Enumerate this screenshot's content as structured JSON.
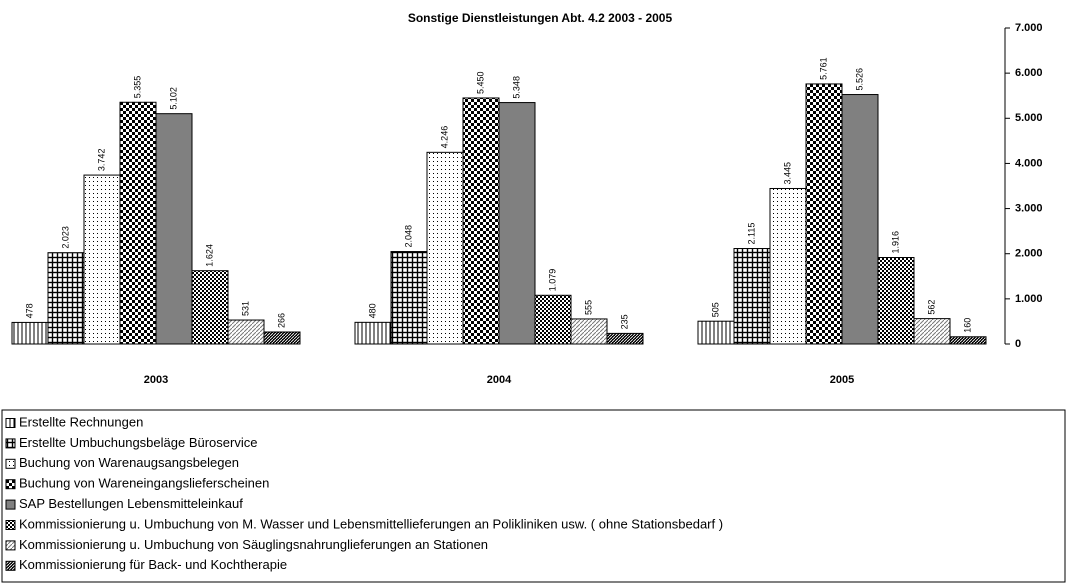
{
  "chart_data": {
    "type": "bar",
    "title": "Sonstige Dienstleistungen  Abt. 4.2     2003 - 2005",
    "categories": [
      "2003",
      "2004",
      "2005"
    ],
    "ylim": [
      0,
      7000
    ],
    "yticks": [
      {
        "value": 0,
        "label": "0"
      },
      {
        "value": 1000,
        "label": "1.000"
      },
      {
        "value": 2000,
        "label": "2.000"
      },
      {
        "value": 3000,
        "label": "3.000"
      },
      {
        "value": 4000,
        "label": "4.000"
      },
      {
        "value": 5000,
        "label": "5.000"
      },
      {
        "value": 6000,
        "label": "6.000"
      },
      {
        "value": 7000,
        "label": "7.000"
      }
    ],
    "series": [
      {
        "name": "Erstellte Rechnungen",
        "color": "#000000",
        "values": [
          478,
          480,
          505
        ],
        "value_labels": [
          "478",
          "480",
          "505"
        ]
      },
      {
        "name": "Erstellte Umbuchungsbeläge Büroservice",
        "color": "#000000",
        "values": [
          2023,
          2048,
          2115
        ],
        "value_labels": [
          "2.023",
          "2.048",
          "2.115"
        ]
      },
      {
        "name": "Buchung von Warenaugsangsbelegen",
        "color": "#000000",
        "values": [
          3742,
          4246,
          3445
        ],
        "value_labels": [
          "3.742",
          "4.246",
          "3.445"
        ]
      },
      {
        "name": "Buchung von Wareneingangslieferscheinen",
        "color": "#000000",
        "values": [
          5355,
          5450,
          5761
        ],
        "value_labels": [
          "5.355",
          "5.450",
          "5.761"
        ]
      },
      {
        "name": "SAP Bestellungen Lebensmitteleinkauf",
        "color": "#808080",
        "values": [
          5102,
          5348,
          5526
        ],
        "value_labels": [
          "5.102",
          "5.348",
          "5.526"
        ]
      },
      {
        "name": "Kommissionierung u. Umbuchung von M. Wasser und Lebensmittellieferungen an Polikliniken usw. ( ohne Stationsbedarf )",
        "color": "#000000",
        "values": [
          1624,
          1079,
          1916
        ],
        "value_labels": [
          "1.624",
          "1.079",
          "1.916"
        ]
      },
      {
        "name": "Kommissionierung u. Umbuchung von Säuglingsnahrunglieferungen an Stationen",
        "color": "#000000",
        "values": [
          531,
          555,
          562
        ],
        "value_labels": [
          "531",
          "555",
          "562"
        ]
      },
      {
        "name": "Kommissionierung für Back- und Kochtherapie",
        "color": "#000000",
        "values": [
          266,
          235,
          160
        ],
        "value_labels": [
          "266",
          "235",
          "160"
        ]
      }
    ]
  }
}
